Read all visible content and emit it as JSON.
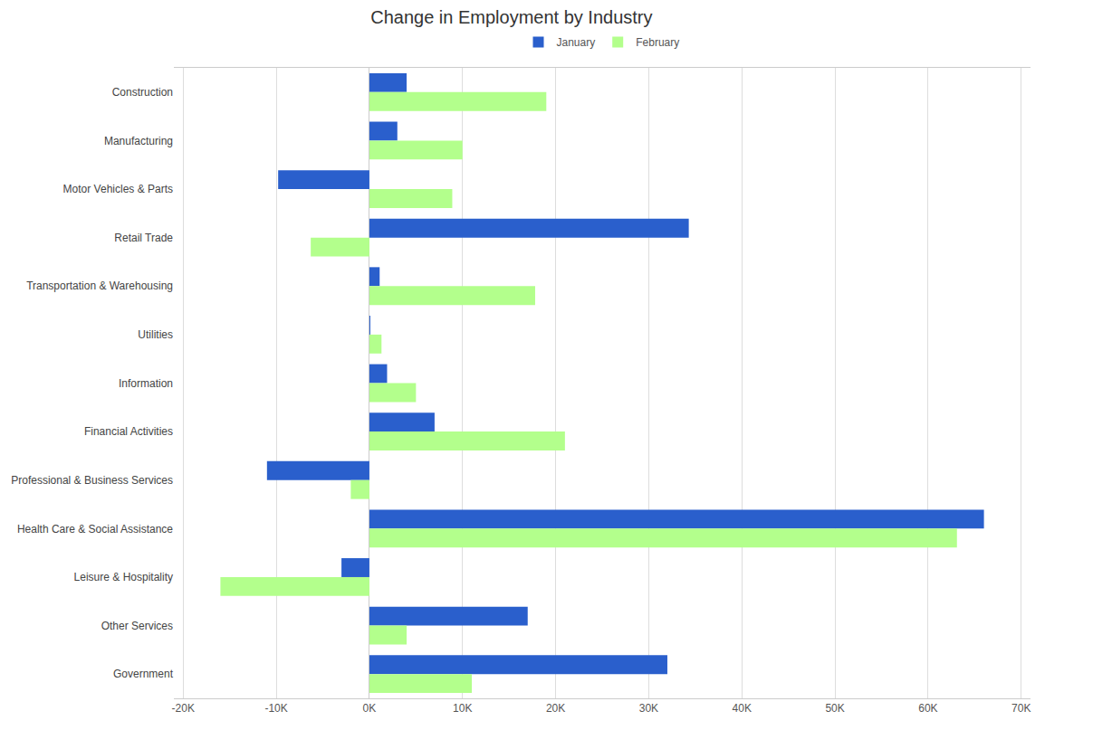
{
  "chart_data": {
    "type": "bar",
    "title": "Change in Employment by Industry",
    "orientation": "horizontal",
    "grid": true,
    "legend": "top",
    "categories": [
      "Construction",
      "Manufacturing",
      "Motor Vehicles & Parts",
      "Retail Trade",
      "Transportation & Warehousing",
      "Utilities",
      "Information",
      "Financial Activities",
      "Professional & Business Services",
      "Health Care & Social Assistance",
      "Leisure & Hospitality",
      "Other Services",
      "Government"
    ],
    "series": [
      {
        "name": "January",
        "color": "#2a5fcc",
        "values": [
          4000,
          3000,
          -9800,
          34300,
          1100,
          100,
          1900,
          7000,
          -11000,
          66000,
          -3000,
          17000,
          32000
        ]
      },
      {
        "name": "February",
        "color": "#b3ff8c",
        "values": [
          19000,
          10000,
          8900,
          -6300,
          17800,
          1300,
          5000,
          21000,
          -2000,
          63100,
          -16000,
          4000,
          11000
        ]
      }
    ],
    "xlim": [
      -21000,
      71000
    ],
    "xticks": [
      {
        "value": -20000,
        "label": "-20K"
      },
      {
        "value": -10000,
        "label": "-10K"
      },
      {
        "value": 0,
        "label": "0K"
      },
      {
        "value": 10000,
        "label": "10K"
      },
      {
        "value": 20000,
        "label": "20K"
      },
      {
        "value": 30000,
        "label": "30K"
      },
      {
        "value": 40000,
        "label": "40K"
      },
      {
        "value": 50000,
        "label": "50K"
      },
      {
        "value": 60000,
        "label": "60K"
      },
      {
        "value": 70000,
        "label": "70K"
      }
    ]
  }
}
